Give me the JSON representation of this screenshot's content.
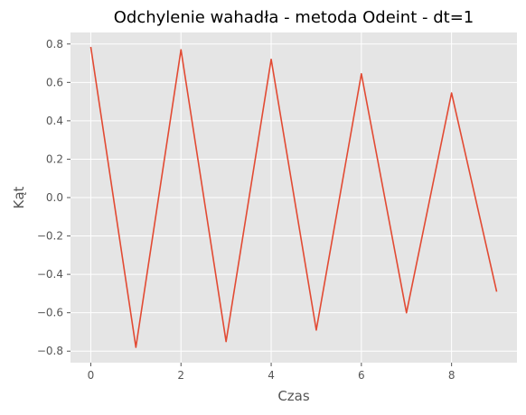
{
  "chart_data": {
    "type": "line",
    "title": "Odchylenie wahadła - metoda Odeint - dt=1",
    "xlabel": "Czas",
    "ylabel": "Kąt",
    "xlim": [
      -0.45,
      9.45
    ],
    "ylim": [
      -0.86,
      0.86
    ],
    "grid": true,
    "legend": "none",
    "x_ticks": [
      0,
      2,
      4,
      6,
      8
    ],
    "x_tick_labels": [
      "0",
      "2",
      "4",
      "6",
      "8"
    ],
    "y_ticks": [
      0.8,
      0.6,
      0.4,
      0.2,
      0.0,
      -0.2,
      -0.4,
      -0.6,
      -0.8
    ],
    "y_tick_labels": [
      "0.8",
      "0.6",
      "0.4",
      "0.2",
      "0.0",
      "−0.2",
      "−0.4",
      "−0.6",
      "−0.8"
    ],
    "series": [
      {
        "x": [
          0,
          1,
          2,
          3,
          4,
          5,
          6,
          7,
          8,
          9
        ],
        "values": [
          0.785,
          -0.78,
          0.77,
          -0.75,
          0.72,
          -0.69,
          0.645,
          -0.6,
          0.545,
          -0.49
        ],
        "color": "#E24A33"
      }
    ],
    "colors": {
      "plot_background": "#E5E5E5",
      "grid": "#FFFFFF",
      "tick": "#555555",
      "title": "#000000"
    }
  }
}
